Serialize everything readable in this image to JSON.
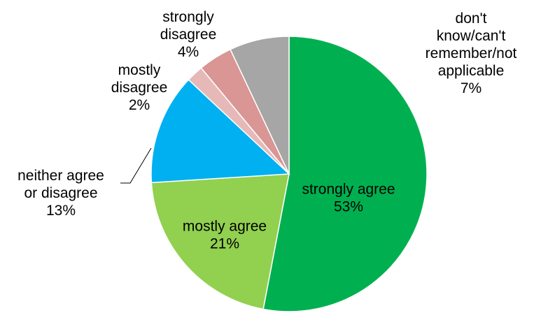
{
  "chart_data": {
    "type": "pie",
    "start_angle_deg": 0,
    "direction": "clockwise",
    "slices": [
      {
        "label_lines": [
          "strongly agree",
          "53%"
        ],
        "value": 53,
        "color": "#00b050"
      },
      {
        "label_lines": [
          "mostly agree",
          "21%"
        ],
        "value": 21,
        "color": "#92d050"
      },
      {
        "label_lines": [
          "neither agree",
          "or disagree",
          "13%"
        ],
        "value": 13,
        "color": "#00b0f0"
      },
      {
        "label_lines": [
          "mostly",
          "disagree",
          "2%"
        ],
        "value": 2,
        "color": "#e6b9b8"
      },
      {
        "label_lines": [
          "strongly",
          "disagree",
          "4%"
        ],
        "value": 4,
        "color": "#d99694"
      },
      {
        "label_lines": [
          "don't",
          "know/can't",
          "remember/not",
          "applicable",
          "7%"
        ],
        "value": 7,
        "color": "#a6a6a6"
      }
    ]
  }
}
